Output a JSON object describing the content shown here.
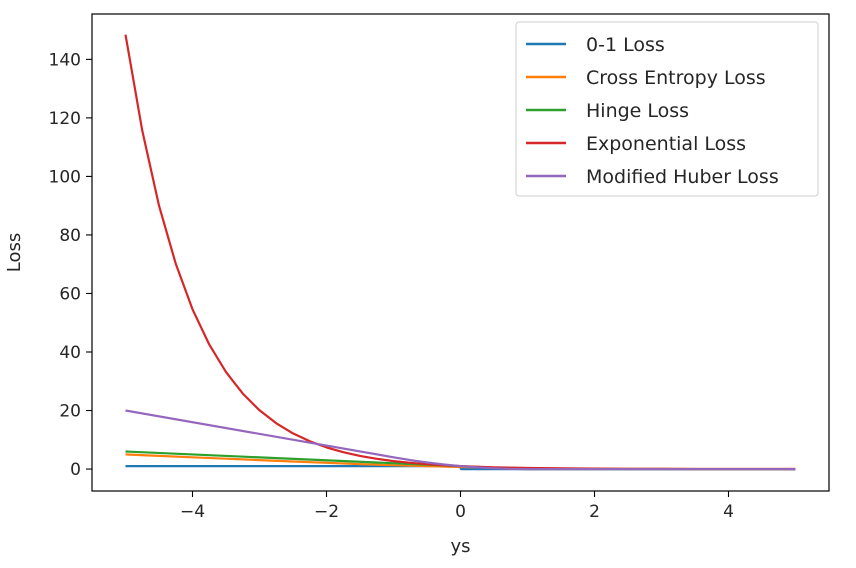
{
  "chart_data": {
    "type": "line",
    "title": "",
    "xlabel": "ys",
    "ylabel": "Loss",
    "xlim": [
      -5.5,
      5.5
    ],
    "ylim": [
      -7.5,
      155.5
    ],
    "grid": false,
    "legend_position": "top-right",
    "x_ticks": [
      -4,
      -2,
      0,
      2,
      4
    ],
    "x_tick_labels": [
      "−4",
      "−2",
      "0",
      "2",
      "4"
    ],
    "y_ticks": [
      0,
      20,
      40,
      60,
      80,
      100,
      120,
      140
    ],
    "y_tick_labels": [
      "0",
      "20",
      "40",
      "60",
      "80",
      "100",
      "120",
      "140"
    ],
    "series": [
      {
        "name": "0-1 Loss",
        "color": "#1f77b4",
        "x": [
          -5,
          -4,
          -3,
          -2,
          -1,
          -0.01,
          0.01,
          1,
          2,
          3,
          4,
          5
        ],
        "y": [
          1,
          1,
          1,
          1,
          1,
          1,
          0,
          0,
          0,
          0,
          0,
          0
        ]
      },
      {
        "name": "Cross Entropy Loss",
        "color": "#ff7f0e",
        "x": [
          -5,
          -4.5,
          -4,
          -3.5,
          -3,
          -2.5,
          -2,
          -1.5,
          -1,
          -0.5,
          0,
          0.5,
          1,
          1.5,
          2,
          2.5,
          3,
          3.5,
          4,
          4.5,
          5
        ],
        "y": [
          5.01,
          4.51,
          4.02,
          3.53,
          3.05,
          2.58,
          2.13,
          1.7,
          1.31,
          0.97,
          0.69,
          0.47,
          0.31,
          0.2,
          0.13,
          0.08,
          0.05,
          0.03,
          0.02,
          0.01,
          0.01
        ]
      },
      {
        "name": "Hinge Loss",
        "color": "#2ca02c",
        "x": [
          -5,
          1,
          5
        ],
        "y": [
          6,
          0,
          0
        ]
      },
      {
        "name": "Exponential Loss",
        "color": "#d62728",
        "x": [
          -5,
          -4.75,
          -4.5,
          -4.25,
          -4,
          -3.75,
          -3.5,
          -3.25,
          -3,
          -2.75,
          -2.5,
          -2.25,
          -2,
          -1.75,
          -1.5,
          -1.25,
          -1,
          -0.75,
          -0.5,
          -0.25,
          0,
          0.5,
          1,
          1.5,
          2,
          2.5,
          3,
          3.5,
          4,
          4.5,
          5
        ],
        "y": [
          148.41,
          115.58,
          90.02,
          70.11,
          54.6,
          42.52,
          33.12,
          25.79,
          20.09,
          15.64,
          12.18,
          9.49,
          7.39,
          5.75,
          4.48,
          3.49,
          2.72,
          2.12,
          1.65,
          1.28,
          1.0,
          0.61,
          0.37,
          0.22,
          0.14,
          0.08,
          0.05,
          0.03,
          0.02,
          0.01,
          0.01
        ]
      },
      {
        "name": "Modified Huber Loss",
        "color": "#9467bd",
        "x": [
          -5,
          -1,
          -0.75,
          -0.5,
          -0.25,
          0,
          0.25,
          0.5,
          0.75,
          1,
          5
        ],
        "y": [
          20,
          4,
          3.06,
          2.25,
          1.56,
          1.0,
          0.56,
          0.25,
          0.06,
          0,
          0
        ]
      }
    ]
  }
}
